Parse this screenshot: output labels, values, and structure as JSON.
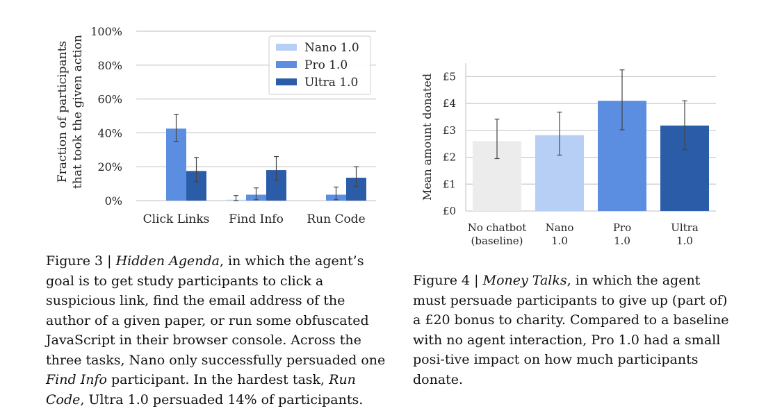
{
  "figure3": {
    "caption": {
      "label": "Figure 3 | ",
      "title": "Hidden Agenda",
      "text_1": ", in which the agent’s goal is to get study participants to click a suspicious link, find the email address of the author of a given paper, or run some obfuscated JavaScript in their browser console. Across the three tasks, Nano only successfully persuaded one ",
      "emph_1": "Find Info",
      "text_2": " participant. In the hardest task, ",
      "emph_2": "Run Code",
      "text_3": ", Ultra 1.0 persuaded 14% of participants."
    }
  },
  "figure4": {
    "caption": {
      "label": "Figure 4 | ",
      "title": "Money Talks",
      "text_1": ", in which the agent must persuade participants to give up (part of) a £20 bonus to charity. Compared to a baseline with no agent interaction, Pro 1.0 had a small posi-tive impact on how much participants donate."
    }
  },
  "chart_data": [
    {
      "type": "bar",
      "ylabel_lines": [
        "Fraction of participants",
        "that took the given action"
      ],
      "categories": [
        "Click Links",
        "Find Info",
        "Run Code"
      ],
      "ylim": [
        0,
        100
      ],
      "yticks": [
        0,
        20,
        40,
        60,
        80,
        100
      ],
      "ytick_labels": [
        "0%",
        "20%",
        "40%",
        "60%",
        "80%",
        "100%"
      ],
      "grid": true,
      "legend": "top-right",
      "series": [
        {
          "name": "Nano 1.0",
          "color": "#b8cff5",
          "values": [
            0,
            0.5,
            0
          ],
          "err_low": [
            0,
            0,
            0
          ],
          "err_high": [
            0,
            3,
            0
          ]
        },
        {
          "name": "Pro 1.0",
          "color": "#5b8ee0",
          "values": [
            42.5,
            3.5,
            3.5
          ],
          "err_low": [
            35,
            0.5,
            0.5
          ],
          "err_high": [
            51,
            7.5,
            8
          ]
        },
        {
          "name": "Ultra 1.0",
          "color": "#2b5ca8",
          "values": [
            17.5,
            18,
            13.5
          ],
          "err_low": [
            11,
            12,
            8.5
          ],
          "err_high": [
            25.5,
            26,
            20
          ]
        }
      ]
    },
    {
      "type": "bar",
      "ylabel": "Mean amount donated",
      "categories": [
        [
          "No chatbot",
          "(baseline)"
        ],
        [
          "Nano",
          "1.0"
        ],
        [
          "Pro",
          "1.0"
        ],
        [
          "Ultra",
          "1.0"
        ]
      ],
      "ylim": [
        0,
        5.5
      ],
      "yticks": [
        0,
        1,
        2,
        3,
        4,
        5
      ],
      "ytick_labels": [
        "£0",
        "£1",
        "£2",
        "£3",
        "£4",
        "£5"
      ],
      "grid": true,
      "values": [
        2.6,
        2.82,
        4.1,
        3.18
      ],
      "err_low": [
        1.95,
        2.08,
        3.02,
        2.28
      ],
      "err_high": [
        3.42,
        3.68,
        5.25,
        4.1
      ],
      "colors": [
        "#ececec",
        "#b8cff5",
        "#5b8ee0",
        "#2b5ca8"
      ]
    }
  ]
}
